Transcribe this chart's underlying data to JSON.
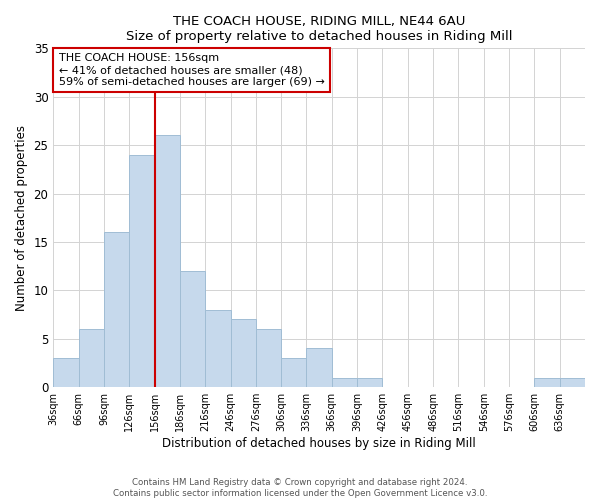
{
  "title": "THE COACH HOUSE, RIDING MILL, NE44 6AU",
  "subtitle": "Size of property relative to detached houses in Riding Mill",
  "xlabel": "Distribution of detached houses by size in Riding Mill",
  "ylabel": "Number of detached properties",
  "bin_labels": [
    "36sqm",
    "66sqm",
    "96sqm",
    "126sqm",
    "156sqm",
    "186sqm",
    "216sqm",
    "246sqm",
    "276sqm",
    "306sqm",
    "336sqm",
    "366sqm",
    "396sqm",
    "426sqm",
    "456sqm",
    "486sqm",
    "516sqm",
    "546sqm",
    "576sqm",
    "606sqm",
    "636sqm"
  ],
  "bin_edges": [
    36,
    66,
    96,
    126,
    156,
    186,
    216,
    246,
    276,
    306,
    336,
    366,
    396,
    426,
    456,
    486,
    516,
    546,
    576,
    606,
    636,
    666
  ],
  "counts": [
    3,
    6,
    16,
    24,
    26,
    12,
    8,
    7,
    6,
    3,
    4,
    1,
    1,
    0,
    0,
    0,
    0,
    0,
    0,
    1,
    1
  ],
  "property_value": 156,
  "bar_color": "#c6d9ec",
  "bar_edgecolor": "#a0bdd4",
  "vline_color": "#cc0000",
  "annotation_text": "THE COACH HOUSE: 156sqm\n← 41% of detached houses are smaller (48)\n59% of semi-detached houses are larger (69) →",
  "annotation_box_edgecolor": "#cc0000",
  "ylim": [
    0,
    35
  ],
  "yticks": [
    0,
    5,
    10,
    15,
    20,
    25,
    30,
    35
  ],
  "footnote1": "Contains HM Land Registry data © Crown copyright and database right 2024.",
  "footnote2": "Contains public sector information licensed under the Open Government Licence v3.0."
}
